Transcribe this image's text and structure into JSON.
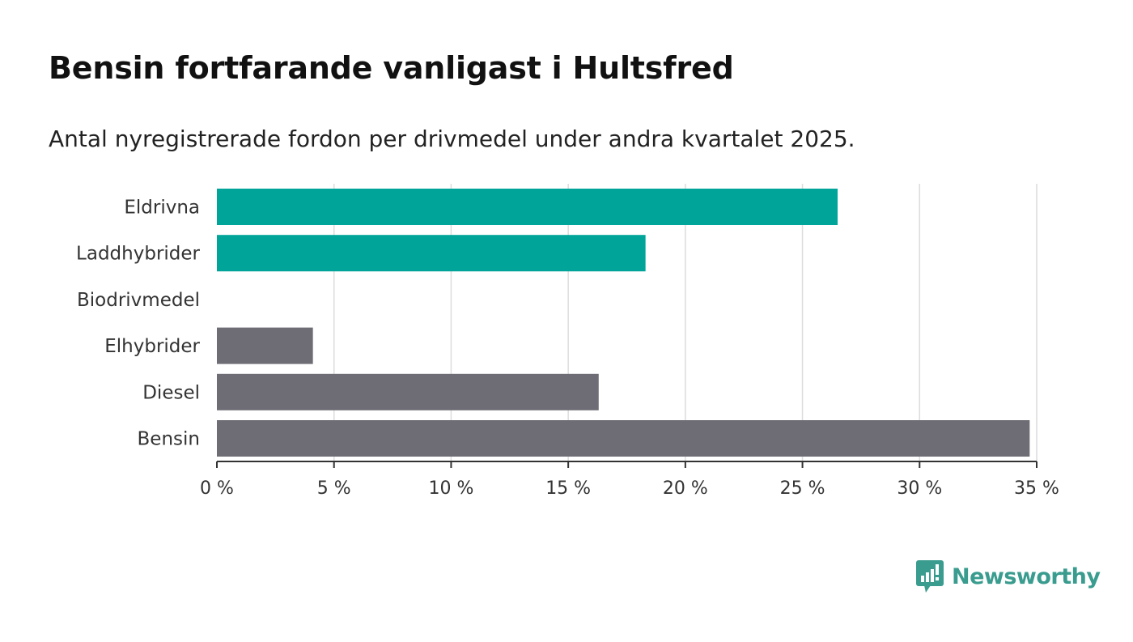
{
  "chart_data": {
    "type": "bar",
    "orientation": "horizontal",
    "title": "Bensin fortfarande vanligast i Hultsfred",
    "subtitle": "Antal nyregistrerade fordon per drivmedel under andra kvartalet 2025.",
    "categories": [
      "Eldrivna",
      "Laddhybrider",
      "Biodrivmedel",
      "Elhybrider",
      "Diesel",
      "Bensin"
    ],
    "values": [
      26.5,
      18.3,
      0,
      4.1,
      16.3,
      34.7
    ],
    "bar_colors": [
      "#00a499",
      "#00a499",
      "#00a499",
      "#6e6d75",
      "#6e6d75",
      "#6e6d75"
    ],
    "xlim": [
      0,
      35
    ],
    "xticks": [
      0,
      5,
      10,
      15,
      20,
      25,
      30,
      35
    ],
    "xtick_labels": [
      "0 %",
      "5 %",
      "10 %",
      "15 %",
      "20 %",
      "25 %",
      "30 %",
      "35 %"
    ],
    "xlabel": "",
    "ylabel": "",
    "grid": true,
    "legend": "none"
  },
  "branding": {
    "logo_text": "Newsworthy",
    "logo_icon": "bar-chart-speech-bubble-icon",
    "color": "#3a9c8f"
  }
}
